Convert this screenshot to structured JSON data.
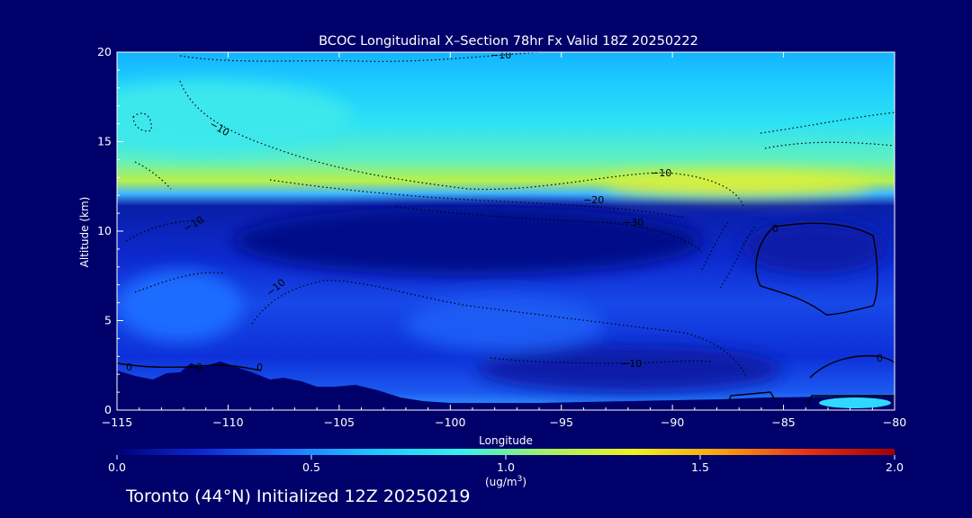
{
  "chart_data": {
    "type": "heatmap",
    "title": "BCOC Longitudinal X–Section 78hr  Fx Valid 18Z 20250222",
    "xlabel": "Longitude",
    "ylabel": "Altitude (km)",
    "xlim": [
      -115,
      -80
    ],
    "ylim": [
      0,
      20
    ],
    "x_ticks": [
      "−115",
      "−110",
      "−105",
      "−100",
      "−95",
      "−90",
      "−85",
      "−80"
    ],
    "y_ticks": [
      "0",
      "5",
      "10",
      "15",
      "20"
    ],
    "colorbar": {
      "min": 0.0,
      "max": 2.0,
      "ticks": [
        "0.0",
        "0.5",
        "1.0",
        "1.5",
        "2.0"
      ],
      "unit_base": "(ug/m",
      "unit_exp": "3",
      "unit_end": ")",
      "colors": [
        "#00007a",
        "#0c2bd0",
        "#1f78ff",
        "#1fc8ff",
        "#38f0e8",
        "#a8f060",
        "#f0f020",
        "#f8a010",
        "#e83010",
        "#a00000"
      ]
    },
    "concentration_layers": [
      {
        "altitude_range_km": [
          18,
          20
        ],
        "value_ugm3": 0.65
      },
      {
        "altitude_range_km": [
          15,
          18
        ],
        "value_ugm3": 0.85
      },
      {
        "altitude_range_km": [
          12,
          15
        ],
        "value_ugm3": 1.05
      },
      {
        "altitude_range_km": [
          8,
          11.5
        ],
        "value_ugm3": 0.2
      },
      {
        "altitude_range_km": [
          1,
          8
        ],
        "value_ugm3": 0.35
      },
      {
        "altitude_range_km": [
          0,
          1
        ],
        "value_ugm3": 0.6
      }
    ],
    "contour_labels": [
      "−10",
      "−10",
      "−10",
      "−20",
      "−30",
      "−10",
      "−10",
      "−10",
      "0",
      "0",
      "0",
      "0",
      "0"
    ]
  },
  "footer": "Toronto (44°N) Initialized 12Z 20250219"
}
